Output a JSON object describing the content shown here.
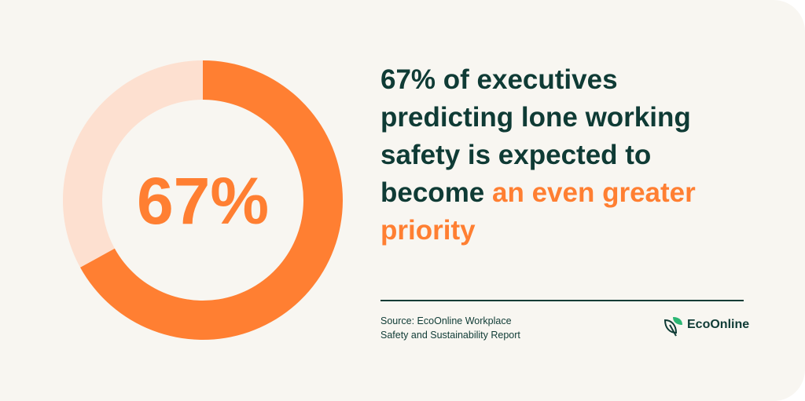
{
  "chart_data": {
    "type": "donut",
    "values": [
      67,
      33
    ],
    "value_labels": [
      "67%",
      null
    ],
    "colors": [
      "#ff7f32",
      "#fde0d0"
    ]
  },
  "headline": "67% of executives predicting lone working safety is expected to become ",
  "highlight": "an even greater priority",
  "source": "Source: EcoOnline Workplace Safety and Sustainability Report",
  "brand": "EcoOnline"
}
